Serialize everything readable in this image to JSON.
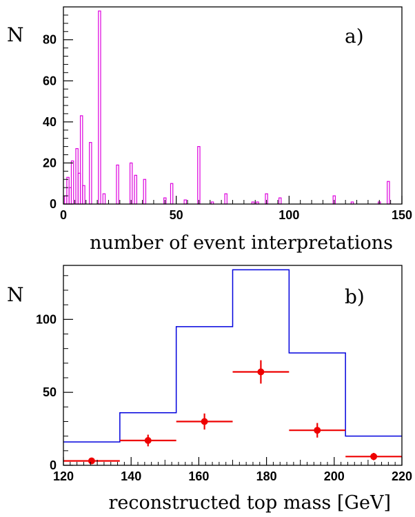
{
  "chart_data": [
    {
      "type": "bar",
      "panel_label": "a)",
      "ylabel": "N",
      "xlabel": "number of event interpretations",
      "xlim": [
        0,
        150
      ],
      "ylim": [
        0,
        96
      ],
      "xticks": [
        0,
        50,
        100,
        150
      ],
      "yticks": [
        0,
        20,
        40,
        60,
        80
      ],
      "bin_width": 1,
      "line_color": "#dd00dd",
      "x": [
        1,
        2,
        3,
        4,
        6,
        7,
        8,
        9,
        12,
        16,
        18,
        24,
        30,
        32,
        36,
        45,
        48,
        54,
        60,
        66,
        72,
        84,
        86,
        90,
        96,
        120,
        128,
        140,
        144
      ],
      "values": [
        4,
        13,
        8,
        21,
        27,
        15,
        43,
        9,
        30,
        94,
        5,
        19,
        20,
        14,
        12,
        3,
        10,
        2,
        28,
        1,
        5,
        1,
        1,
        5,
        3,
        4,
        1,
        1,
        11
      ]
    },
    {
      "type": "line",
      "panel_label": "b)",
      "ylabel": "N",
      "xlabel": "reconstructed top mass [GeV]",
      "xlim": [
        120,
        220
      ],
      "ylim": [
        0,
        137
      ],
      "xticks": [
        120,
        140,
        160,
        180,
        200,
        220
      ],
      "yticks": [
        0,
        50,
        100
      ],
      "series": [
        {
          "style": "histogram",
          "color": "#0000dd",
          "bin_edges": [
            120,
            136.67,
            153.33,
            170,
            186.67,
            203.33,
            220
          ],
          "values": [
            16,
            36,
            95,
            134,
            77,
            20
          ]
        },
        {
          "style": "points",
          "color": "#ee0000",
          "x": [
            128.33,
            145,
            161.67,
            178.33,
            195,
            211.67
          ],
          "xerr": 8.33,
          "values": [
            3,
            17,
            30,
            64,
            24,
            6
          ],
          "yerr": [
            1.5,
            4,
            5.5,
            8,
            5,
            2.5
          ]
        }
      ]
    }
  ]
}
